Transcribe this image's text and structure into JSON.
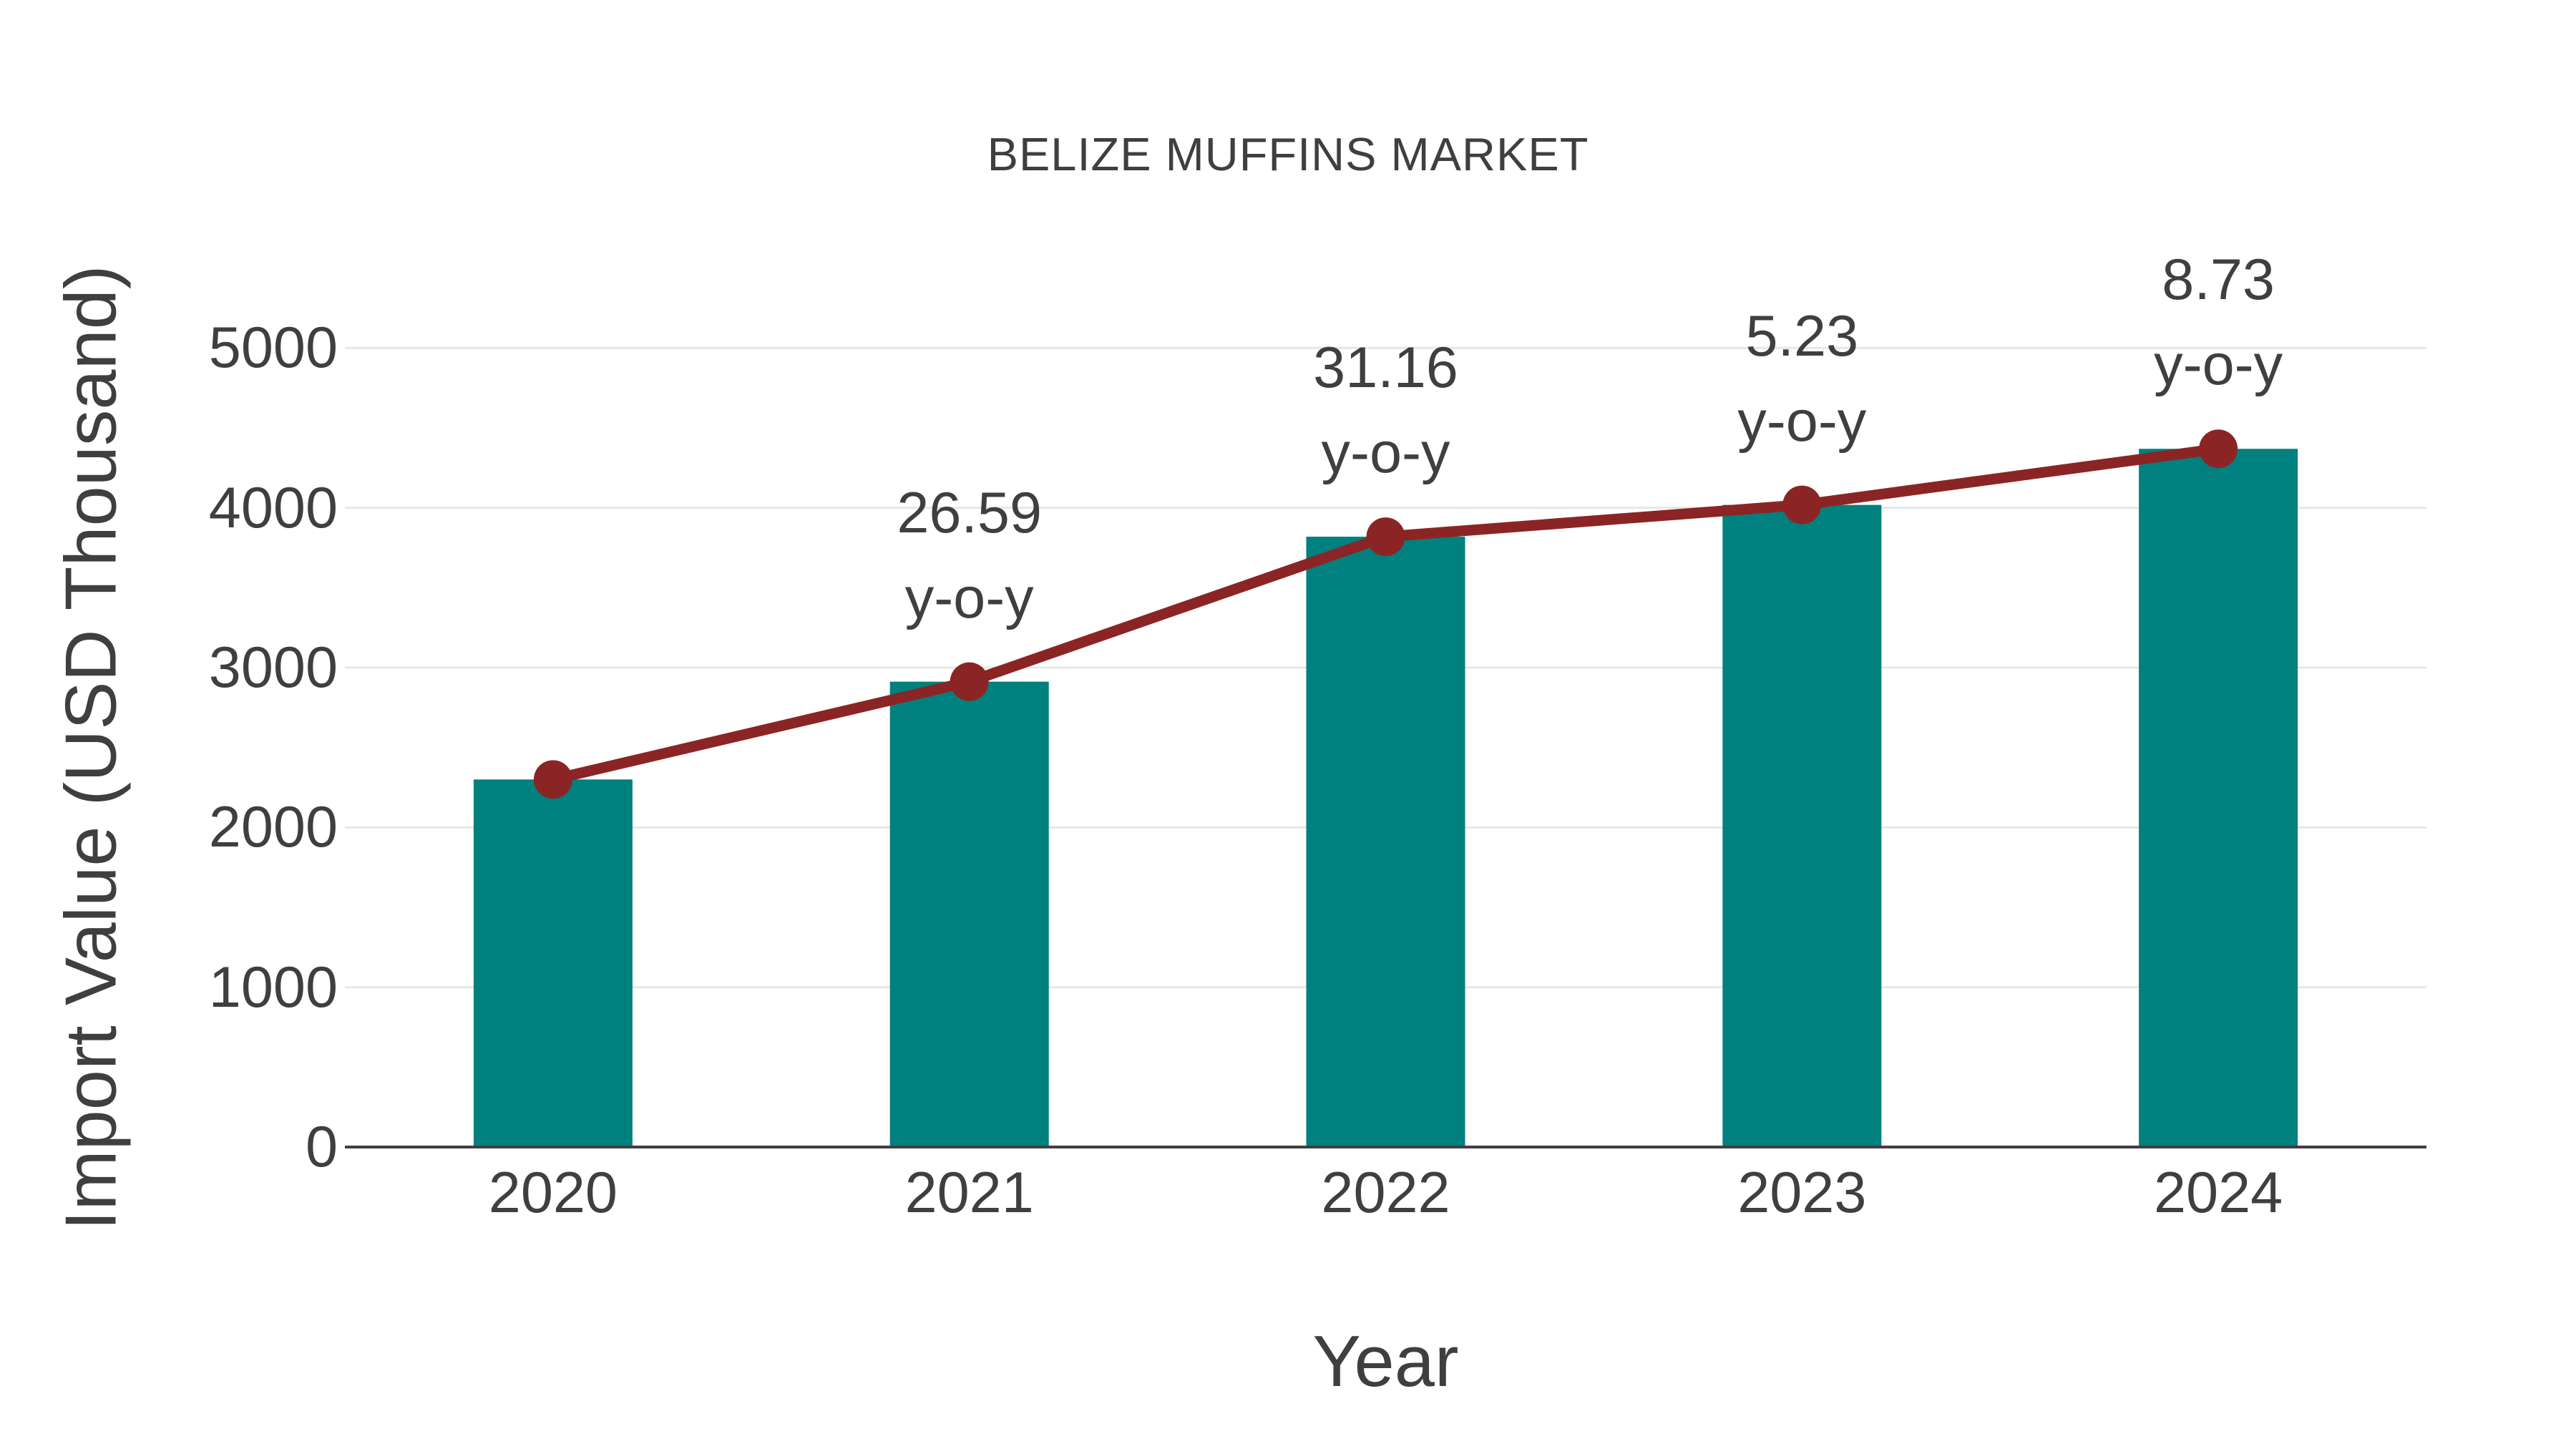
{
  "title": "BELIZE MUFFINS MARKET",
  "x_axis": {
    "title": "Year",
    "ticks": [
      "2020",
      "2021",
      "2022",
      "2023",
      "2024"
    ]
  },
  "y_axis": {
    "title": "Import Value (USD Thousand)",
    "ticks": [
      0,
      1000,
      2000,
      3000,
      4000,
      5000
    ]
  },
  "chart_data": {
    "type": "bar",
    "title": "BELIZE MUFFINS MARKET",
    "xlabel": "Year",
    "ylabel": "Import Value (USD Thousand)",
    "categories": [
      "2020",
      "2021",
      "2022",
      "2023",
      "2024"
    ],
    "series": [
      {
        "name": "Import Value (USD Thousand)",
        "type": "bar",
        "values": [
          2300,
          2912,
          3819,
          4018,
          4369
        ]
      },
      {
        "name": "Import Value trend",
        "type": "line",
        "values": [
          2300,
          2912,
          3819,
          4018,
          4369
        ]
      }
    ],
    "annotations": [
      {
        "category": "2021",
        "line1": "26.59",
        "line2": "y-o-y"
      },
      {
        "category": "2022",
        "line1": "31.16",
        "line2": "y-o-y"
      },
      {
        "category": "2023",
        "line1": "5.23",
        "line2": "y-o-y"
      },
      {
        "category": "2024",
        "line1": "8.73",
        "line2": "y-o-y"
      }
    ],
    "ylim": [
      0,
      5000
    ],
    "grid": true,
    "legend": "none",
    "colors": {
      "bar": "#00807E",
      "line": "#8B2525",
      "marker": "#8B2525",
      "text": "#3F3F3F",
      "grid": "#E7E7E7",
      "axis_line": "#3F3F3F",
      "background": "#FFFFFF"
    }
  }
}
